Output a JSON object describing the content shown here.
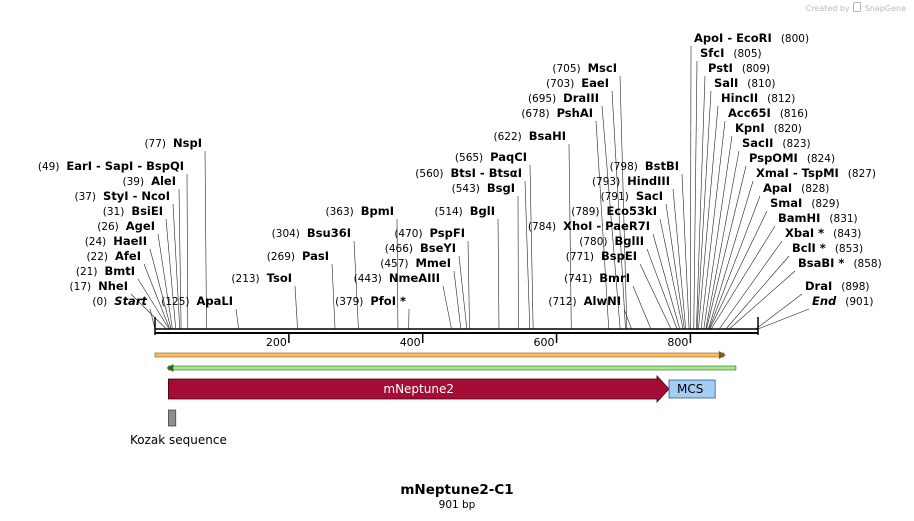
{
  "credit": {
    "prefix": "Created by",
    "brand": "SnapGene"
  },
  "map": {
    "title": "mNeptune2-C1",
    "length_label": "901 bp",
    "length": 901
  },
  "ticks": [
    "200",
    "400",
    "600",
    "800"
  ],
  "features": [
    {
      "name": "mNeptune2",
      "start": 20,
      "end": 768,
      "color": "#a50d36",
      "kind": "arrow"
    },
    {
      "name": "MCS",
      "start": 768,
      "end": 837,
      "color": "#a4cdf5",
      "kind": "box"
    },
    {
      "name": "Kozak sequence",
      "start": 20,
      "end": 31,
      "color": "#8e8e8e",
      "kind": "small"
    }
  ],
  "ranges": [
    {
      "start": 0,
      "end": 850,
      "color": "#fdbf62",
      "stroke": "#7a5a22"
    },
    {
      "start": 20,
      "end": 868,
      "color": "#a8e88e",
      "stroke": "#2e6b1f"
    }
  ],
  "sites_left": [
    {
      "pos": "(0)",
      "name": "Start",
      "cut": 0,
      "italic": true
    },
    {
      "pos": "(17)",
      "name": "NheI",
      "cut": 17
    },
    {
      "pos": "(21)",
      "name": "BmtI",
      "cut": 21
    },
    {
      "pos": "(22)",
      "name": "AfeI",
      "cut": 22
    },
    {
      "pos": "(24)",
      "name": "HaeII",
      "cut": 24
    },
    {
      "pos": "(26)",
      "name": "AgeI",
      "cut": 26
    },
    {
      "pos": "(31)",
      "name": "BsiEI",
      "cut": 31
    },
    {
      "pos": "(37)",
      "name": "StyI  -  NcoI",
      "cut": 37
    },
    {
      "pos": "(39)",
      "name": "AleI",
      "cut": 39
    },
    {
      "pos": "(49)",
      "name": "EarI  -  SapI  -  BspQI",
      "cut": 49
    },
    {
      "pos": "(77)",
      "name": "NspI",
      "cut": 77
    },
    {
      "pos": "(125)",
      "name": "ApaLI",
      "cut": 125
    },
    {
      "pos": "(213)",
      "name": "TsoI",
      "cut": 213
    },
    {
      "pos": "(269)",
      "name": "PasI",
      "cut": 269
    },
    {
      "pos": "(304)",
      "name": "Bsu36I",
      "cut": 304
    },
    {
      "pos": "(363)",
      "name": "BpmI",
      "cut": 363
    },
    {
      "pos": "(379)",
      "name": "PfoI *",
      "cut": 379
    },
    {
      "pos": "(443)",
      "name": "NmeAIII",
      "cut": 443
    },
    {
      "pos": "(457)",
      "name": "MmeI",
      "cut": 457
    },
    {
      "pos": "(466)",
      "name": "BseYI",
      "cut": 466
    },
    {
      "pos": "(470)",
      "name": "PspFI",
      "cut": 470
    },
    {
      "pos": "(514)",
      "name": "BglI",
      "cut": 514
    },
    {
      "pos": "(543)",
      "name": "BsgI",
      "cut": 543
    },
    {
      "pos": "(560)",
      "name": "BtsI  -  BtsαI",
      "cut": 560
    },
    {
      "pos": "(565)",
      "name": "PaqCI",
      "cut": 565
    },
    {
      "pos": "(622)",
      "name": "BsaHI",
      "cut": 622
    },
    {
      "pos": "(678)",
      "name": "PshAI",
      "cut": 678
    },
    {
      "pos": "(695)",
      "name": "DraIII",
      "cut": 695
    },
    {
      "pos": "(703)",
      "name": "EaeI",
      "cut": 703
    },
    {
      "pos": "(705)",
      "name": "MscI",
      "cut": 705
    },
    {
      "pos": "(712)",
      "name": "AlwNI",
      "cut": 712
    },
    {
      "pos": "(741)",
      "name": "BmrI",
      "cut": 741
    },
    {
      "pos": "(771)",
      "name": "BspEI",
      "cut": 771
    },
    {
      "pos": "(780)",
      "name": "BglII",
      "cut": 780
    },
    {
      "pos": "(784)",
      "name": "XhoI  -  PaeR7I",
      "cut": 784
    },
    {
      "pos": "(789)",
      "name": "Eco53kI",
      "cut": 789
    },
    {
      "pos": "(791)",
      "name": "SacI",
      "cut": 791
    },
    {
      "pos": "(793)",
      "name": "HindIII",
      "cut": 793
    },
    {
      "pos": "(798)",
      "name": "BstBI",
      "cut": 798
    }
  ],
  "sites_right": [
    {
      "name": "ApoI  -  EcoRI",
      "pos": "(800)",
      "cut": 800
    },
    {
      "name": "SfcI",
      "pos": "(805)",
      "cut": 805
    },
    {
      "name": "PstI",
      "pos": "(809)",
      "cut": 809
    },
    {
      "name": "SalI",
      "pos": "(810)",
      "cut": 810
    },
    {
      "name": "HincII",
      "pos": "(812)",
      "cut": 812
    },
    {
      "name": "Acc65I",
      "pos": "(816)",
      "cut": 816
    },
    {
      "name": "KpnI",
      "pos": "(820)",
      "cut": 820
    },
    {
      "name": "SacII",
      "pos": "(823)",
      "cut": 823
    },
    {
      "name": "PspOMI",
      "pos": "(824)",
      "cut": 824
    },
    {
      "name": "XmaI  -  TspMI",
      "pos": "(827)",
      "cut": 827
    },
    {
      "name": "ApaI",
      "pos": "(828)",
      "cut": 828
    },
    {
      "name": "SmaI",
      "pos": "(829)",
      "cut": 829
    },
    {
      "name": "BamHI",
      "pos": "(831)",
      "cut": 831
    },
    {
      "name": "XbaI *",
      "pos": "(843)",
      "cut": 843
    },
    {
      "name": "BclI *",
      "pos": "(853)",
      "cut": 853
    },
    {
      "name": "BsaBI *",
      "pos": "(858)",
      "cut": 858
    },
    {
      "name": "DraI",
      "pos": "(898)",
      "cut": 898
    },
    {
      "name": "End",
      "pos": "(901)",
      "cut": 901,
      "italic": true
    }
  ]
}
